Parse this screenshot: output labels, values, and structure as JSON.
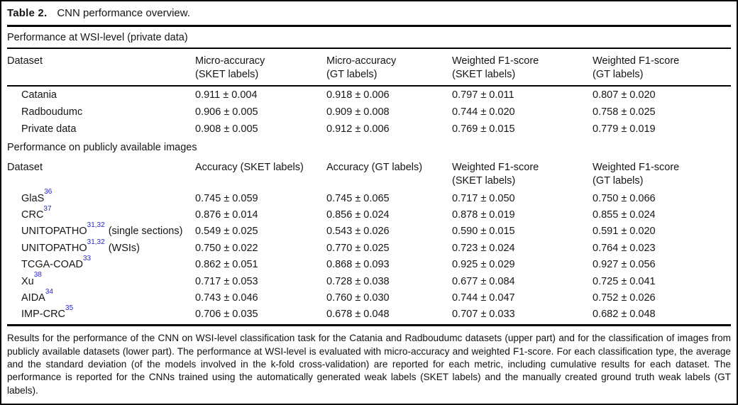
{
  "colors": {
    "reference_blue": "#2727cd",
    "text": "#161616",
    "border": "#000000"
  },
  "table": {
    "label": "Table 2.",
    "caption": "CNN performance overview.",
    "sections": [
      {
        "heading": "Performance at WSI-level (private data)",
        "columns": [
          {
            "line1": "Dataset",
            "line2": ""
          },
          {
            "line1": "Micro-accuracy",
            "line2": "(SKET labels)"
          },
          {
            "line1": "Micro-accuracy",
            "line2": "(GT labels)"
          },
          {
            "line1": "Weighted F1-score",
            "line2": "(SKET labels)"
          },
          {
            "line1": "Weighted F1-score",
            "line2": "(GT labels)"
          }
        ],
        "rows": [
          {
            "name": "Catania",
            "sup": "",
            "note": "",
            "values": [
              "0.911 ± 0.004",
              "0.918 ± 0.006",
              "0.797 ± 0.011",
              "0.807 ± 0.020"
            ]
          },
          {
            "name": "Radboudumc",
            "sup": "",
            "note": "",
            "values": [
              "0.906 ± 0.005",
              "0.909 ± 0.008",
              "0.744 ± 0.020",
              "0.758 ± 0.025"
            ]
          },
          {
            "name": "Private data",
            "sup": "",
            "note": "",
            "values": [
              "0.908 ± 0.005",
              "0.912 ± 0.006",
              "0.769 ± 0.015",
              "0.779 ± 0.019"
            ]
          }
        ]
      },
      {
        "heading": "Performance on publicly available images",
        "columns": [
          {
            "line1": "Dataset",
            "line2": ""
          },
          {
            "line1": "Accuracy (SKET labels)",
            "line2": ""
          },
          {
            "line1": "Accuracy (GT labels)",
            "line2": ""
          },
          {
            "line1": "Weighted F1-score",
            "line2": "(SKET labels)"
          },
          {
            "line1": "Weighted F1-score",
            "line2": "(GT labels)"
          }
        ],
        "rows": [
          {
            "name": "GlaS",
            "sup": "36",
            "note": "",
            "values": [
              "0.745 ± 0.059",
              "0.745 ± 0.065",
              "0.717 ± 0.050",
              "0.750 ± 0.066"
            ]
          },
          {
            "name": "CRC",
            "sup": "37",
            "note": "",
            "values": [
              "0.876 ± 0.014",
              "0.856 ± 0.024",
              "0.878 ± 0.019",
              "0.855 ± 0.024"
            ]
          },
          {
            "name": "UNITOPATHO",
            "sup": "31,32",
            "note": "(single sections)",
            "values": [
              "0.549 ± 0.025",
              "0.543 ± 0.026",
              "0.590 ± 0.015",
              "0.591 ± 0.020"
            ]
          },
          {
            "name": "UNITOPATHO",
            "sup": "31,32",
            "note": "(WSIs)",
            "values": [
              "0.750 ± 0.022",
              "0.770 ± 0.025",
              "0.723 ± 0.024",
              "0.764 ± 0.023"
            ]
          },
          {
            "name": "TCGA-COAD",
            "sup": "33",
            "note": "",
            "values": [
              "0.862 ± 0.051",
              "0.868 ± 0.093",
              "0.925 ± 0.029",
              "0.927 ± 0.056"
            ]
          },
          {
            "name": "Xu",
            "sup": "38",
            "note": "",
            "values": [
              "0.717 ± 0.053",
              "0.728 ± 0.038",
              "0.677 ± 0.084",
              "0.725 ± 0.041"
            ]
          },
          {
            "name": "AIDA",
            "sup": "34",
            "note": "",
            "values": [
              "0.743 ± 0.046",
              "0.760 ± 0.030",
              "0.744 ± 0.047",
              "0.752 ± 0.026"
            ]
          },
          {
            "name": "IMP-CRC",
            "sup": "35",
            "note": "",
            "values": [
              "0.706 ± 0.035",
              "0.678 ± 0.048",
              "0.707 ± 0.033",
              "0.682 ± 0.048"
            ]
          }
        ]
      }
    ],
    "footnote": "Results for the performance of the CNN on WSI-level classification task for the Catania and Radboudumc datasets (upper part) and for the classification of images from publicly available datasets (lower part). The performance at WSI-level is evaluated with micro-accuracy and weighted F1-score. For each classification type, the average and the standard deviation (of the models involved in the k-fold cross-validation) are reported for each metric, including cumulative results for each dataset. The performance is reported for the CNNs trained using the automatically generated weak labels (SKET labels) and the manually created ground truth weak labels (GT labels)."
  }
}
